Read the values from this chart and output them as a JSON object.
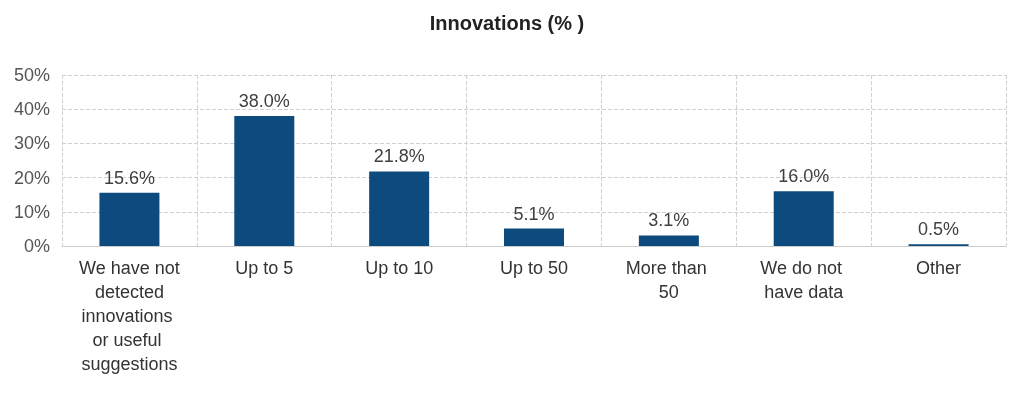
{
  "chart_data": {
    "type": "bar",
    "title": "Innovations (% )",
    "categories": [
      "We have not detected innovations or useful suggestions",
      "Up to 5",
      "Up to 10",
      "Up to 50",
      "More than 50",
      "We do not have data",
      "Other"
    ],
    "values": [
      15.6,
      38.0,
      21.8,
      5.1,
      3.1,
      16.0,
      0.5
    ],
    "value_labels": [
      "15.6%",
      "38.0%",
      "21.8%",
      "5.1%",
      "3.1%",
      "16.0%",
      "0.5%"
    ],
    "color": "#0d4a7e",
    "ylim": [
      0,
      50
    ],
    "yticks": [
      {
        "value": 0,
        "label": "0%"
      },
      {
        "value": 10,
        "label": "10%"
      },
      {
        "value": 20,
        "label": "20%"
      },
      {
        "value": 30,
        "label": "30%"
      },
      {
        "value": 40,
        "label": "40%"
      },
      {
        "value": 50,
        "label": "50%"
      }
    ],
    "grid": true
  }
}
